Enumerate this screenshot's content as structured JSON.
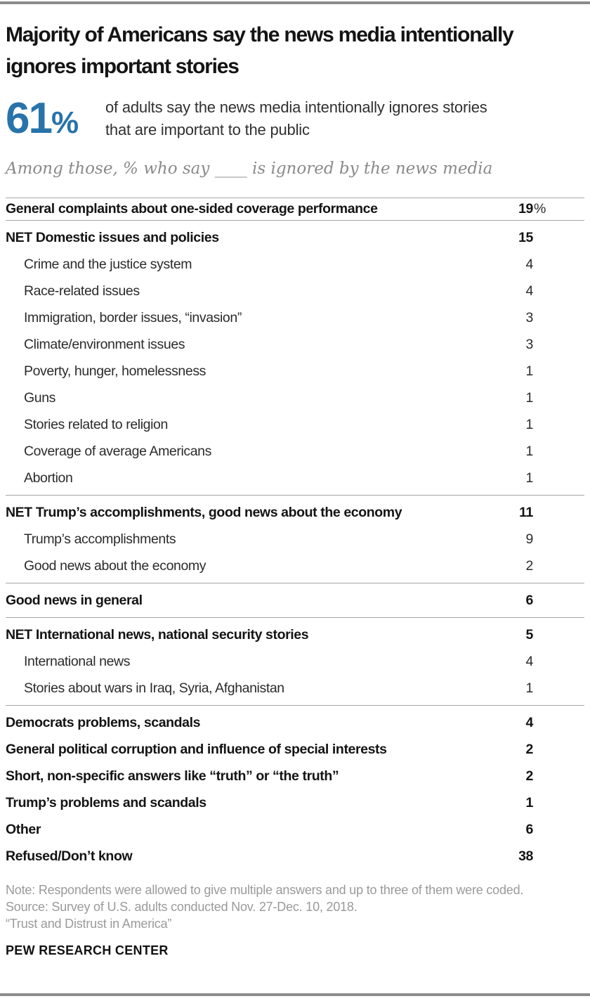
{
  "header": {
    "title": "Majority of Americans say the news media intentionally ignores important stories"
  },
  "callout": {
    "stat_value": "61",
    "stat_suffix": "%",
    "description": "of adults say the news media intentionally ignores stories that are important to the public"
  },
  "subtitle": "Among those, % who say ____ is ignored by the news media",
  "chart_data": {
    "type": "table",
    "title": "Majority of Americans say the news media intentionally ignores important stories",
    "headline_stat": {
      "value": 61,
      "suffix": "%",
      "description": "of adults say the news media intentionally ignores stories that are important to the public"
    },
    "unit": "% of adults who say the news media intentionally ignores important stories, who name each topic",
    "rows": [
      {
        "label": "General complaints about one-sided coverage performance",
        "value": 19,
        "suffix": "%",
        "bold": true,
        "indent": false
      },
      {
        "label": "NET Domestic issues and policies",
        "value": 15,
        "bold": true,
        "indent": false
      },
      {
        "label": "Crime and the justice system",
        "value": 4,
        "bold": false,
        "indent": true
      },
      {
        "label": "Race-related issues",
        "value": 4,
        "bold": false,
        "indent": true
      },
      {
        "label": "Immigration, border issues, “invasion”",
        "value": 3,
        "bold": false,
        "indent": true
      },
      {
        "label": "Climate/environment issues",
        "value": 3,
        "bold": false,
        "indent": true
      },
      {
        "label": "Poverty, hunger, homelessness",
        "value": 1,
        "bold": false,
        "indent": true
      },
      {
        "label": "Guns",
        "value": 1,
        "bold": false,
        "indent": true
      },
      {
        "label": "Stories related to religion",
        "value": 1,
        "bold": false,
        "indent": true
      },
      {
        "label": "Coverage of average Americans",
        "value": 1,
        "bold": false,
        "indent": true
      },
      {
        "label": "Abortion",
        "value": 1,
        "bold": false,
        "indent": true
      },
      {
        "label": "NET Trump’s accomplishments, good news about the economy",
        "value": 11,
        "bold": true,
        "indent": false
      },
      {
        "label": "Trump’s accomplishments",
        "value": 9,
        "bold": false,
        "indent": true
      },
      {
        "label": "Good news about the economy",
        "value": 2,
        "bold": false,
        "indent": true
      },
      {
        "label": "Good news in general",
        "value": 6,
        "bold": true,
        "indent": false
      },
      {
        "label": "NET International news, national security stories",
        "value": 5,
        "bold": true,
        "indent": false
      },
      {
        "label": "International news",
        "value": 4,
        "bold": false,
        "indent": true
      },
      {
        "label": "Stories about wars in Iraq, Syria, Afghanistan",
        "value": 1,
        "bold": false,
        "indent": true
      },
      {
        "label": "Democrats problems, scandals",
        "value": 4,
        "bold": true,
        "indent": false
      },
      {
        "label": "General political corruption and influence of special interests",
        "value": 2,
        "bold": true,
        "indent": false
      },
      {
        "label": "Short, non-specific answers like “truth” or “the truth”",
        "value": 2,
        "bold": true,
        "indent": false
      },
      {
        "label": "Trump’s problems and scandals",
        "value": 1,
        "bold": true,
        "indent": false
      },
      {
        "label": "Other",
        "value": 6,
        "bold": true,
        "indent": false
      },
      {
        "label": "Refused/Don’t know",
        "value": 38,
        "bold": true,
        "indent": false
      }
    ]
  },
  "footer": {
    "note": "Note: Respondents were allowed to give multiple answers and up to three of them were coded.",
    "source": "Source: Survey of U.S. adults conducted Nov. 27-Dec. 10, 2018.",
    "report": "“Trust and Distrust in America”",
    "brand": "PEW RESEARCH CENTER"
  },
  "colors": {
    "accent_blue": "#2873AA",
    "rule_gray": "#a6a6a6",
    "bar_gray": "#8c8c8c",
    "note_gray": "#9a9a9a"
  }
}
